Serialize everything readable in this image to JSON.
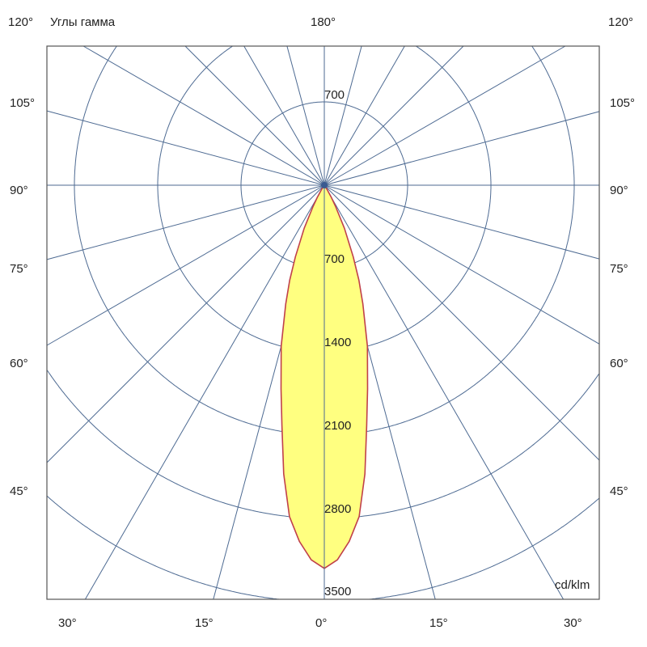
{
  "chart_data": {
    "type": "polar-line",
    "title": "Углы гамма",
    "unit": "cd/klm",
    "radial_ticks": [
      700,
      1400,
      2100,
      2800,
      3500
    ],
    "radial_max": 3500,
    "top_ring_label": "700",
    "angle_step_deg": 15,
    "angle_labels": {
      "top_left": "120°",
      "top_center": "180°",
      "top_right": "120°",
      "left": [
        "105°",
        "90°",
        "75°",
        "60°",
        "45°"
      ],
      "right": [
        "105°",
        "90°",
        "75°",
        "60°",
        "45°"
      ],
      "bottom": [
        "30°",
        "15°",
        "0°",
        "15°",
        "30°"
      ]
    },
    "series": [
      {
        "gamma_deg": [
          0,
          2,
          4,
          6,
          8,
          10,
          12,
          15,
          18,
          20,
          22,
          25,
          28,
          30,
          33,
          35
        ],
        "intensity": [
          3220,
          3150,
          3000,
          2800,
          2450,
          2050,
          1750,
          1400,
          1050,
          850,
          650,
          400,
          200,
          120,
          40,
          0
        ],
        "symmetric": true
      }
    ],
    "colors": {
      "grid": "#4d6a92",
      "fill": "#ffff80",
      "outline": "#c0404a",
      "axis": "#555555"
    }
  }
}
